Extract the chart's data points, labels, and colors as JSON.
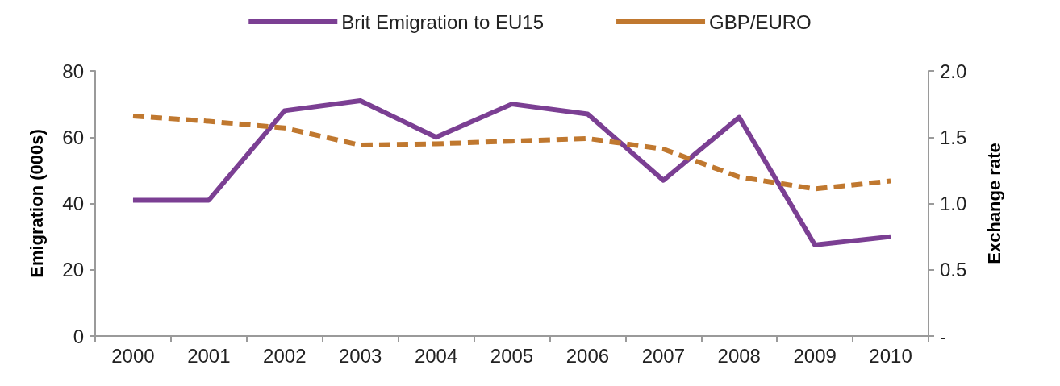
{
  "chart_data": {
    "type": "line",
    "categories": [
      "2000",
      "2001",
      "2002",
      "2003",
      "2004",
      "2005",
      "2006",
      "2007",
      "2008",
      "2009",
      "2010"
    ],
    "ylabel": "Emigration (000s)",
    "y2label": "Exchange rate",
    "ylim": [
      0,
      80
    ],
    "yticks": [
      0,
      20,
      40,
      60,
      80
    ],
    "y2lim": [
      0,
      2
    ],
    "y2ticks": [
      {
        "value": 0,
        "label": "-"
      },
      {
        "value": 0.5,
        "label": "0.5"
      },
      {
        "value": 1,
        "label": "1.0"
      },
      {
        "value": 1.5,
        "label": "1.5"
      },
      {
        "value": 2,
        "label": "2.0"
      }
    ],
    "series": [
      {
        "name": "Brit Emigration to EU15",
        "color": "#7b3f93",
        "line_style": "solid",
        "values": [
          41,
          41,
          68,
          71,
          60,
          70,
          67,
          47,
          66,
          27.5,
          30
        ]
      },
      {
        "name": "GBP/EURO",
        "color": "#c0782f",
        "line_style": "dashed",
        "axis": "y2",
        "values": [
          1.66,
          1.62,
          1.57,
          1.44,
          1.45,
          1.47,
          1.49,
          1.41,
          1.2,
          1.11,
          1.17
        ]
      }
    ],
    "legend": "top",
    "grid": false,
    "marker": "none"
  }
}
